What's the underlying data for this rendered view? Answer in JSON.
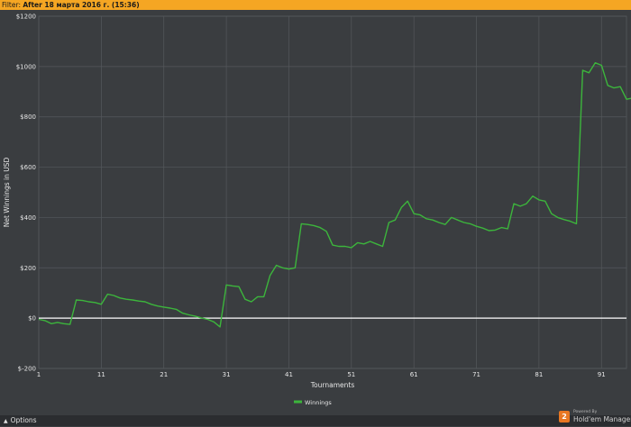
{
  "filter": {
    "label": "Filter:",
    "value": "After 18 марта 2016 г. (15:36)"
  },
  "options": {
    "label": "Options",
    "icon": "caret-up-icon"
  },
  "branding": {
    "powered_by": "Powered By",
    "name": "Hold'em Manager",
    "icon_text": "2"
  },
  "colors": {
    "line": "#3cb53c",
    "zero_line": "#ffffff",
    "grid": "#55585c",
    "background": "#3a3d40",
    "filter_bar": "#f5a623"
  },
  "chart_data": {
    "type": "line",
    "xlabel": "Tournaments",
    "ylabel": "Net Winnings in USD",
    "ylim": [
      -200,
      1200
    ],
    "xlim": [
      1,
      95
    ],
    "y_ticks": [
      -200,
      0,
      200,
      400,
      600,
      800,
      1000,
      1200
    ],
    "y_tick_labels": [
      "$-200",
      "$0",
      "$200",
      "$400",
      "$600",
      "$800",
      "$1000",
      "$1200"
    ],
    "x_ticks": [
      1,
      11,
      21,
      31,
      41,
      51,
      61,
      71,
      81,
      91
    ],
    "x_tick_labels": [
      "1",
      "11",
      "21",
      "31",
      "41",
      "51",
      "61",
      "71",
      "81",
      "91"
    ],
    "grid": true,
    "legend_position": "bottom",
    "series": [
      {
        "name": "Winnings",
        "values": [
          -5,
          -10,
          -22,
          -17,
          -22,
          -25,
          72,
          70,
          65,
          62,
          55,
          95,
          90,
          80,
          75,
          72,
          68,
          65,
          55,
          48,
          44,
          40,
          35,
          20,
          13,
          8,
          1,
          -5,
          -15,
          -35,
          132,
          128,
          125,
          75,
          65,
          85,
          85,
          170,
          210,
          200,
          195,
          200,
          375,
          372,
          368,
          360,
          345,
          290,
          285,
          285,
          280,
          300,
          295,
          305,
          295,
          285,
          380,
          390,
          440,
          465,
          415,
          410,
          395,
          390,
          380,
          372,
          400,
          390,
          380,
          375,
          365,
          358,
          348,
          350,
          360,
          355,
          455,
          445,
          455,
          485,
          470,
          465,
          415,
          400,
          392,
          385,
          375,
          985,
          975,
          1015,
          1005,
          925,
          915,
          920,
          870,
          875
        ]
      }
    ]
  }
}
